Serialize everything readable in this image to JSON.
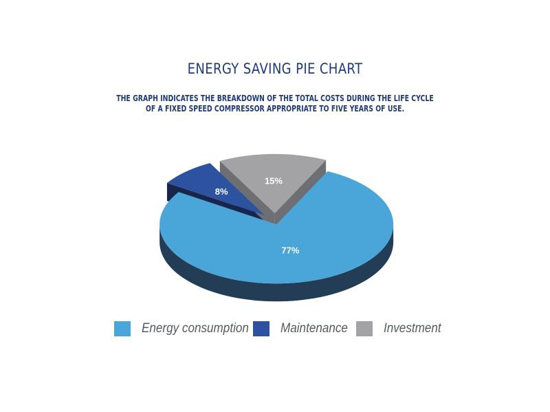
{
  "header": {
    "title": "ENERGY SAVING PIE CHART",
    "subtitle_line1": "THE GRAPH INDICATES THE BREAKDOWN OF THE TOTAL COSTS DURING THE LIFE CYCLE",
    "subtitle_line2": "OF A FIXED SPEED COMPRESSOR APPROPRIATE TO FIVE YEARS OF USE."
  },
  "chart_data": {
    "type": "pie",
    "title": "ENERGY SAVING PIE CHART",
    "subtitle": "THE GRAPH INDICATES THE BREAKDOWN OF THE TOTAL COSTS DURING THE LIFE CYCLE OF A FIXED SPEED COMPRESSOR APPROPRIATE TO FIVE YEARS OF USE.",
    "style": "3d-exploded",
    "legend_position": "bottom",
    "slices": [
      {
        "name": "Energy consumption",
        "value": 77,
        "label": "77%",
        "color": "#4aa5d9",
        "side_color": "#223d55"
      },
      {
        "name": "Maintenance",
        "value": 8,
        "label": "8%",
        "color": "#2c52a0",
        "side_color": "#17264a"
      },
      {
        "name": "Investment",
        "value": 15,
        "label": "15%",
        "color": "#a3a3a5",
        "side_color": "#6e6f72"
      }
    ]
  },
  "legend": {
    "items": [
      {
        "label": "Energy consumption",
        "color": "#4aa5d9"
      },
      {
        "label": "Maintenance",
        "color": "#2c52a0"
      },
      {
        "label": "Investment",
        "color": "#a3a3a5"
      }
    ]
  }
}
